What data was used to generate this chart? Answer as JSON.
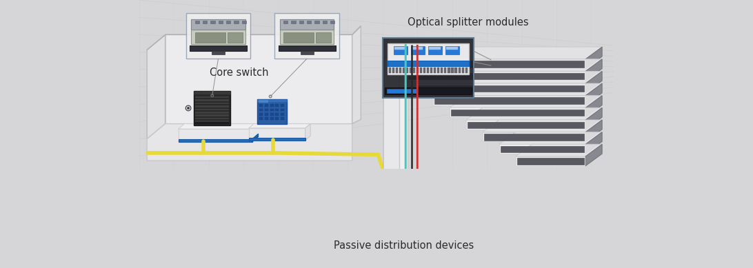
{
  "bg_color": "#d6d6d8",
  "left_wall_bg": "#e8e8ea",
  "left_floor_bg": "#e0e0e2",
  "right_bg": "#d4d4d6",
  "wall_white": "#f2f2f3",
  "wall_edge": "#b8b8bc",
  "platform_white": "#f0f0f2",
  "platform_blue": "#2a6db5",
  "yellow_cable": "#e8d93a",
  "cyan_cable": "#45c8c0",
  "red_cable": "#d03030",
  "pink_cable": "#d870b8",
  "dark_cable": "#282828",
  "text_color": "#2a2a2a",
  "label_fontsize": 10.5,
  "core_switch_label": "Core switch",
  "optical_splitter_label": "Optical splitter modules",
  "passive_dist_label": "Passive distribution devices",
  "grid_color": "#c8c8ca",
  "shelf_white": "#f0f0f2",
  "shelf_dark": "#404048",
  "shelf_mid": "#c8c8cc"
}
